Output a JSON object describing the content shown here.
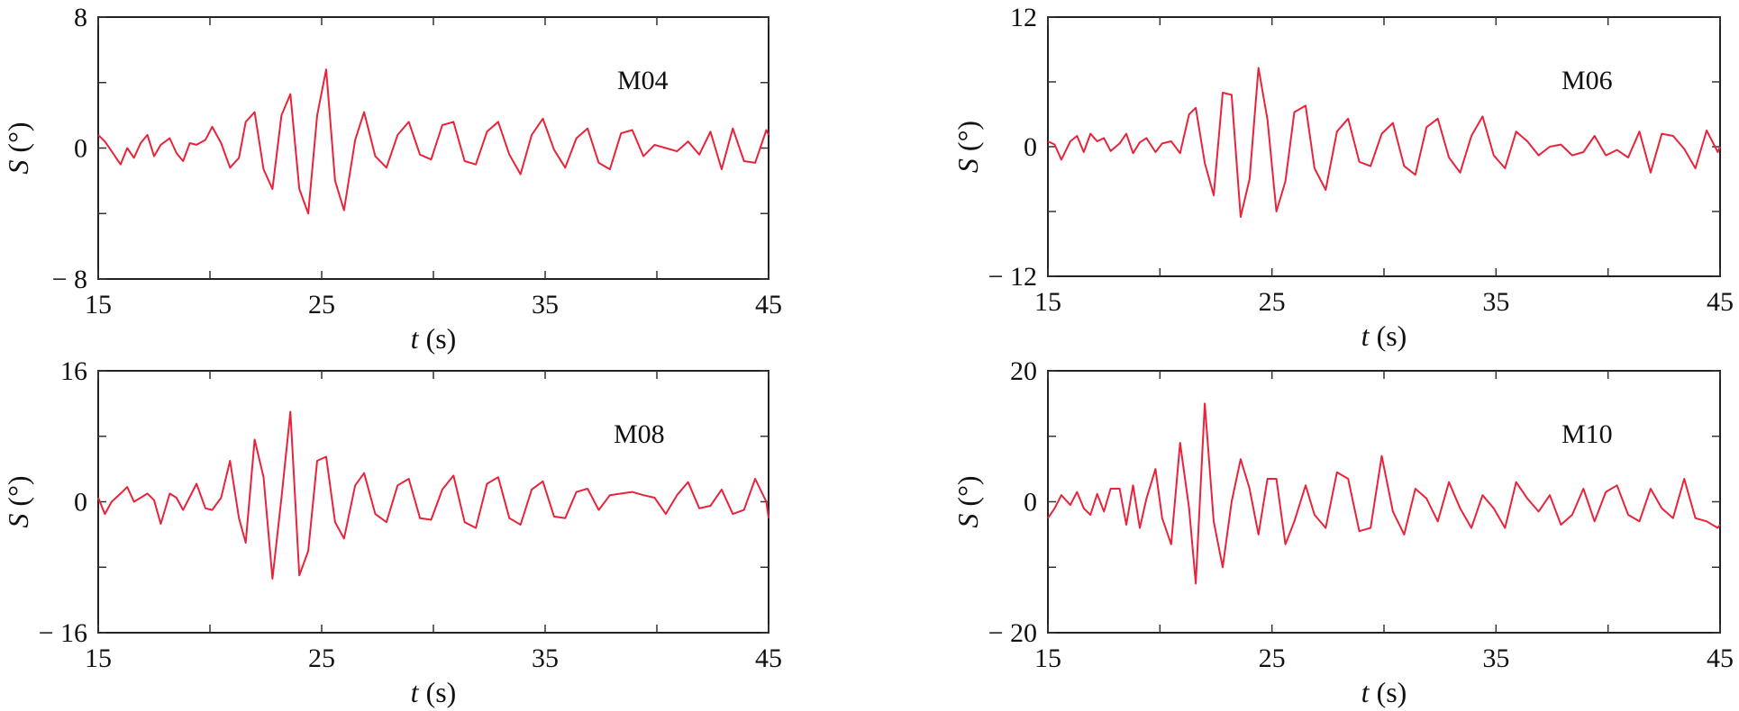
{
  "colors": {
    "series": "#e8233a",
    "axis": "#222222"
  },
  "chart_data": [
    {
      "type": "line",
      "panel_label": "M04",
      "xlabel_var": "t",
      "xlabel_unit": " (s)",
      "ylabel_var": "S",
      "ylabel_unit": " (°)",
      "xlim": [
        15,
        45
      ],
      "ylim": [
        -8,
        8
      ],
      "x_ticks": [
        15,
        25,
        35,
        45
      ],
      "y_ticks": [
        -8,
        0,
        8
      ],
      "x_tick_labels": [
        "15",
        "25",
        "35",
        "45"
      ],
      "y_tick_labels": [
        "− 8",
        "0",
        "8"
      ],
      "grid": false,
      "series": [
        {
          "x": [
            15.0,
            15.3,
            15.6,
            16.0,
            16.3,
            16.6,
            16.9,
            17.2,
            17.5,
            17.8,
            18.2,
            18.5,
            18.8,
            19.1,
            19.4,
            19.8,
            20.1,
            20.5,
            20.9,
            21.3,
            21.6,
            22.0,
            22.4,
            22.8,
            23.2,
            23.6,
            24.0,
            24.4,
            24.8,
            25.2,
            25.6,
            26.0,
            26.5,
            26.9,
            27.4,
            27.9,
            28.4,
            28.9,
            29.4,
            29.9,
            30.4,
            30.9,
            31.4,
            31.9,
            32.4,
            32.9,
            33.4,
            33.9,
            34.4,
            34.9,
            35.4,
            35.9,
            36.4,
            36.9,
            37.4,
            37.9,
            38.4,
            38.9,
            39.4,
            39.9,
            40.4,
            40.9,
            41.4,
            41.9,
            42.4,
            42.9,
            43.4,
            43.9,
            44.4,
            44.9,
            45.0
          ],
          "y": [
            0.8,
            0.4,
            -0.2,
            -1.0,
            0.0,
            -0.6,
            0.3,
            0.8,
            -0.5,
            0.2,
            0.6,
            -0.3,
            -0.8,
            0.3,
            0.2,
            0.5,
            1.3,
            0.3,
            -1.2,
            -0.6,
            1.6,
            2.2,
            -1.3,
            -2.5,
            2.0,
            3.3,
            -2.5,
            -4.0,
            2.0,
            4.8,
            -2.0,
            -3.8,
            0.5,
            2.2,
            -0.5,
            -1.2,
            0.8,
            1.6,
            -0.4,
            -0.7,
            1.4,
            1.6,
            -0.8,
            -1.0,
            1.0,
            1.6,
            -0.4,
            -1.6,
            0.8,
            1.8,
            -0.1,
            -1.2,
            0.6,
            1.2,
            -0.9,
            -1.3,
            0.9,
            1.1,
            -0.5,
            0.2,
            0.0,
            -0.2,
            0.4,
            -0.4,
            1.0,
            -1.3,
            1.2,
            -0.8,
            -0.9,
            1.1,
            0.8
          ]
        }
      ]
    },
    {
      "type": "line",
      "panel_label": "M06",
      "xlabel_var": "t",
      "xlabel_unit": " (s)",
      "ylabel_var": "S",
      "ylabel_unit": " (°)",
      "xlim": [
        15,
        45
      ],
      "ylim": [
        -12,
        12
      ],
      "x_ticks": [
        15,
        25,
        35,
        45
      ],
      "y_ticks": [
        -12,
        0,
        12
      ],
      "x_tick_labels": [
        "15",
        "25",
        "35",
        "45"
      ],
      "y_tick_labels": [
        "− 12",
        "0",
        "12"
      ],
      "grid": false,
      "series": [
        {
          "x": [
            15.0,
            15.3,
            15.6,
            16.0,
            16.3,
            16.6,
            16.9,
            17.2,
            17.5,
            17.8,
            18.2,
            18.5,
            18.8,
            19.1,
            19.4,
            19.8,
            20.1,
            20.5,
            20.9,
            21.3,
            21.6,
            22.0,
            22.4,
            22.8,
            23.2,
            23.6,
            24.0,
            24.4,
            24.8,
            25.2,
            25.6,
            26.0,
            26.5,
            26.9,
            27.4,
            27.9,
            28.4,
            28.9,
            29.4,
            29.9,
            30.4,
            30.9,
            31.4,
            31.9,
            32.4,
            32.9,
            33.4,
            33.9,
            34.4,
            34.9,
            35.4,
            35.9,
            36.4,
            36.9,
            37.4,
            37.9,
            38.4,
            38.9,
            39.4,
            39.9,
            40.4,
            40.9,
            41.4,
            41.9,
            42.4,
            42.9,
            43.4,
            43.9,
            44.4,
            44.9,
            45.0
          ],
          "y": [
            0.5,
            0.2,
            -1.2,
            0.5,
            1.0,
            -0.5,
            1.2,
            0.5,
            0.8,
            -0.4,
            0.3,
            1.2,
            -0.6,
            0.4,
            0.8,
            -0.5,
            0.3,
            0.5,
            -0.6,
            3.0,
            3.6,
            -1.5,
            -4.5,
            5.0,
            4.8,
            -6.5,
            -3.0,
            7.3,
            2.5,
            -6.0,
            -3.2,
            3.2,
            3.8,
            -2.0,
            -4.0,
            1.4,
            2.6,
            -1.4,
            -1.8,
            1.2,
            2.2,
            -1.8,
            -2.6,
            1.8,
            2.6,
            -1.0,
            -2.4,
            1.0,
            2.8,
            -0.8,
            -2.0,
            1.4,
            0.5,
            -0.8,
            0.0,
            0.2,
            -0.8,
            -0.5,
            1.0,
            -0.8,
            -0.3,
            -1.0,
            1.4,
            -2.4,
            1.2,
            1.0,
            -0.2,
            -2.0,
            1.5,
            -0.5,
            0.0
          ]
        }
      ]
    },
    {
      "type": "line",
      "panel_label": "M08",
      "xlabel_var": "t",
      "xlabel_unit": " (s)",
      "ylabel_var": "S",
      "ylabel_unit": " (°)",
      "xlim": [
        15,
        45
      ],
      "ylim": [
        -16,
        16
      ],
      "x_ticks": [
        15,
        25,
        35,
        45
      ],
      "y_ticks": [
        -16,
        0,
        16
      ],
      "x_tick_labels": [
        "15",
        "25",
        "35",
        "45"
      ],
      "y_tick_labels": [
        "− 16",
        "0",
        "16"
      ],
      "grid": false,
      "series": [
        {
          "x": [
            15.0,
            15.3,
            15.6,
            16.0,
            16.3,
            16.6,
            16.9,
            17.2,
            17.5,
            17.8,
            18.2,
            18.5,
            18.8,
            19.1,
            19.4,
            19.8,
            20.1,
            20.5,
            20.9,
            21.3,
            21.6,
            22.0,
            22.4,
            22.8,
            23.2,
            23.6,
            24.0,
            24.4,
            24.8,
            25.2,
            25.6,
            26.0,
            26.5,
            26.9,
            27.4,
            27.9,
            28.4,
            28.9,
            29.4,
            29.9,
            30.4,
            30.9,
            31.4,
            31.9,
            32.4,
            32.9,
            33.4,
            33.9,
            34.4,
            34.9,
            35.4,
            35.9,
            36.4,
            36.9,
            37.4,
            37.9,
            38.4,
            38.9,
            39.4,
            39.9,
            40.4,
            40.9,
            41.4,
            41.9,
            42.4,
            42.9,
            43.4,
            43.9,
            44.4,
            44.9,
            45.0
          ],
          "y": [
            0.5,
            -1.5,
            0.0,
            1.0,
            1.8,
            0.0,
            0.5,
            1.0,
            0.2,
            -2.7,
            1.0,
            0.5,
            -1.0,
            0.6,
            2.2,
            -0.8,
            -1.0,
            0.5,
            5.0,
            -2.0,
            -5.0,
            7.6,
            3.0,
            -9.4,
            0.5,
            11.0,
            -9.0,
            -6.0,
            5.0,
            5.5,
            -2.5,
            -4.5,
            2.0,
            3.5,
            -1.5,
            -2.5,
            2.0,
            2.8,
            -2.0,
            -2.2,
            1.5,
            3.2,
            -2.5,
            -3.2,
            2.2,
            3.0,
            -2.0,
            -2.8,
            1.5,
            2.5,
            -1.8,
            -2.0,
            1.2,
            1.6,
            -1.0,
            0.8,
            1.0,
            1.2,
            0.8,
            0.5,
            -1.5,
            0.8,
            2.4,
            -0.8,
            -0.5,
            1.5,
            -1.5,
            -1.0,
            2.8,
            0.0,
            -2.0
          ]
        }
      ]
    },
    {
      "type": "line",
      "panel_label": "M10",
      "xlabel_var": "t",
      "xlabel_unit": " (s)",
      "ylabel_var": "S",
      "ylabel_unit": " (°)",
      "xlim": [
        15,
        45
      ],
      "ylim": [
        -20,
        20
      ],
      "x_ticks": [
        15,
        25,
        35,
        45
      ],
      "y_ticks": [
        -20,
        0,
        20
      ],
      "x_tick_labels": [
        "15",
        "25",
        "35",
        "45"
      ],
      "y_tick_labels": [
        "− 20",
        "0",
        "20"
      ],
      "grid": false,
      "series": [
        {
          "x": [
            15.0,
            15.3,
            15.6,
            16.0,
            16.3,
            16.6,
            16.9,
            17.2,
            17.5,
            17.8,
            18.2,
            18.5,
            18.8,
            19.1,
            19.4,
            19.8,
            20.1,
            20.5,
            20.9,
            21.3,
            21.6,
            22.0,
            22.4,
            22.8,
            23.2,
            23.6,
            24.0,
            24.4,
            24.8,
            25.2,
            25.6,
            26.0,
            26.5,
            26.9,
            27.4,
            27.9,
            28.4,
            28.9,
            29.4,
            29.9,
            30.4,
            30.9,
            31.4,
            31.9,
            32.4,
            32.9,
            33.4,
            33.9,
            34.4,
            34.9,
            35.4,
            35.9,
            36.4,
            36.9,
            37.4,
            37.9,
            38.4,
            38.9,
            39.4,
            39.9,
            40.4,
            40.9,
            41.4,
            41.9,
            42.4,
            42.9,
            43.4,
            43.9,
            44.4,
            44.9,
            45.0
          ],
          "y": [
            -2.5,
            -1.0,
            1.0,
            -0.5,
            1.5,
            -1.0,
            -2.0,
            1.2,
            -1.5,
            2.0,
            2.0,
            -3.5,
            2.5,
            -4.0,
            0.5,
            5.0,
            -2.5,
            -6.5,
            9.0,
            -1.0,
            -12.5,
            15.0,
            -3.0,
            -10.0,
            0.0,
            6.5,
            2.0,
            -5.0,
            3.5,
            3.5,
            -6.5,
            -3.0,
            2.5,
            -2.0,
            -4.0,
            4.5,
            3.5,
            -4.5,
            -4.0,
            7.0,
            -1.5,
            -5.0,
            2.0,
            0.5,
            -3.0,
            3.0,
            -1.0,
            -4.0,
            1.0,
            -1.0,
            -4.0,
            3.0,
            0.5,
            -1.5,
            1.0,
            -3.5,
            -2.0,
            2.0,
            -3.0,
            1.5,
            2.5,
            -2.0,
            -3.0,
            2.0,
            -1.0,
            -2.5,
            3.5,
            -2.5,
            -3.0,
            -4.0,
            -3.5
          ]
        }
      ]
    }
  ]
}
